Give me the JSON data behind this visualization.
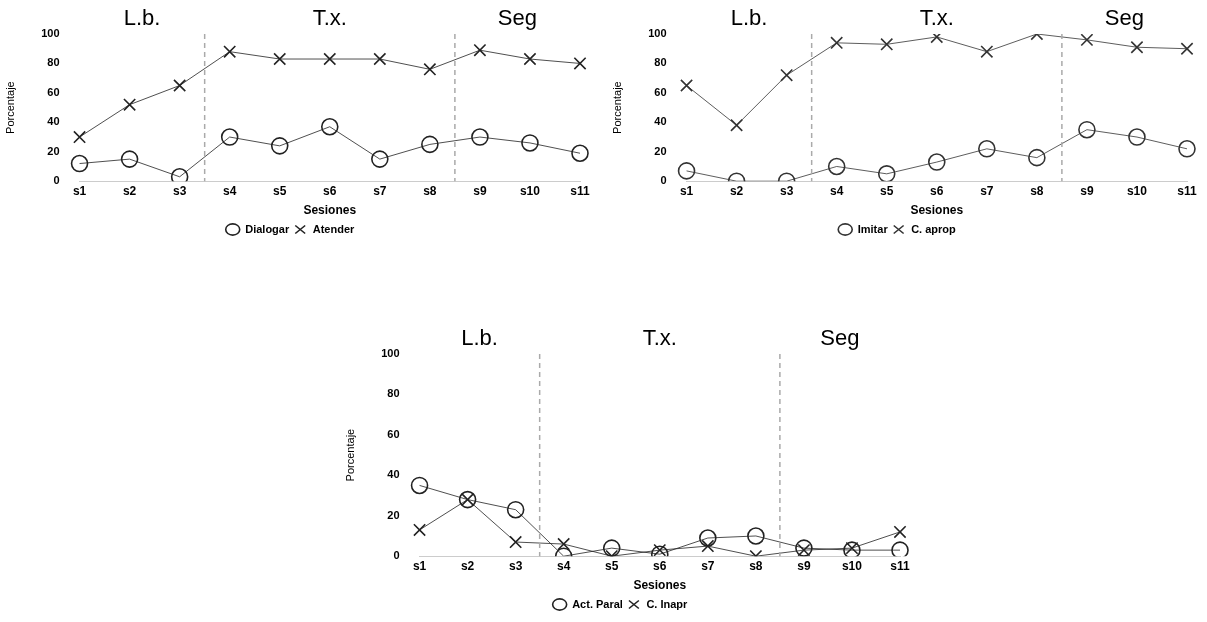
{
  "chart_data": [
    {
      "type": "line",
      "xlabel": "Sesiones",
      "ylabel": "Porcentaje",
      "categories": [
        "s1",
        "s2",
        "s3",
        "s4",
        "s5",
        "s6",
        "s7",
        "s8",
        "s9",
        "s10",
        "s11"
      ],
      "ylim": [
        0,
        100
      ],
      "yticks": [
        0,
        20,
        40,
        60,
        80,
        100
      ],
      "grid": false,
      "legend": "bottom",
      "series": [
        {
          "name": "Dialogar",
          "color": "#222222",
          "marker": "circle",
          "values": [
            12,
            15,
            3,
            30,
            24,
            37,
            15,
            25,
            30,
            26,
            19
          ]
        },
        {
          "name": "Atender",
          "color": "#222222",
          "marker": "cross",
          "values": [
            30,
            52,
            65,
            88,
            83,
            83,
            83,
            76,
            89,
            83,
            80
          ]
        }
      ],
      "annotations": [
        "L.b.",
        "T.x.",
        "Seg"
      ]
    },
    {
      "type": "line",
      "xlabel": "Sesiones",
      "ylabel": "Porcentaje",
      "categories": [
        "s1",
        "s2",
        "s3",
        "s4",
        "s5",
        "s6",
        "s7",
        "s8",
        "s9",
        "s10",
        "s11"
      ],
      "ylim": [
        0,
        100
      ],
      "yticks": [
        0,
        20,
        40,
        60,
        80,
        100
      ],
      "grid": false,
      "legend": "bottom",
      "series": [
        {
          "name": "Imitar",
          "color": "#333333",
          "marker": "circle",
          "values": [
            7,
            0,
            0,
            10,
            5,
            13,
            22,
            16,
            35,
            30,
            22
          ]
        },
        {
          "name": "C. aprop",
          "color": "#333333",
          "marker": "cross",
          "values": [
            65,
            38,
            72,
            94,
            93,
            98,
            88,
            100,
            96,
            91,
            90
          ]
        }
      ],
      "annotations": [
        "L.b.",
        "T.x.",
        "Seg"
      ]
    },
    {
      "type": "line",
      "xlabel": "Sesiones",
      "ylabel": "Porcentaje",
      "categories": [
        "s1",
        "s2",
        "s3",
        "s4",
        "s5",
        "s6",
        "s7",
        "s8",
        "s9",
        "s10",
        "s11"
      ],
      "ylim": [
        0,
        100
      ],
      "yticks": [
        0,
        20,
        40,
        60,
        80,
        100
      ],
      "grid": false,
      "legend": "bottom",
      "series": [
        {
          "name": "Act. Paral",
          "color": "#222222",
          "marker": "circle",
          "values": [
            35,
            28,
            23,
            0,
            4,
            1,
            9,
            10,
            4,
            3,
            3
          ]
        },
        {
          "name": "C. Inapr",
          "color": "#222222",
          "marker": "cross",
          "values": [
            13,
            28,
            7,
            6,
            0,
            3,
            5,
            0,
            3,
            4,
            12
          ]
        }
      ],
      "annotations": [
        "L.b.",
        "T.x.",
        "Seg"
      ]
    }
  ]
}
